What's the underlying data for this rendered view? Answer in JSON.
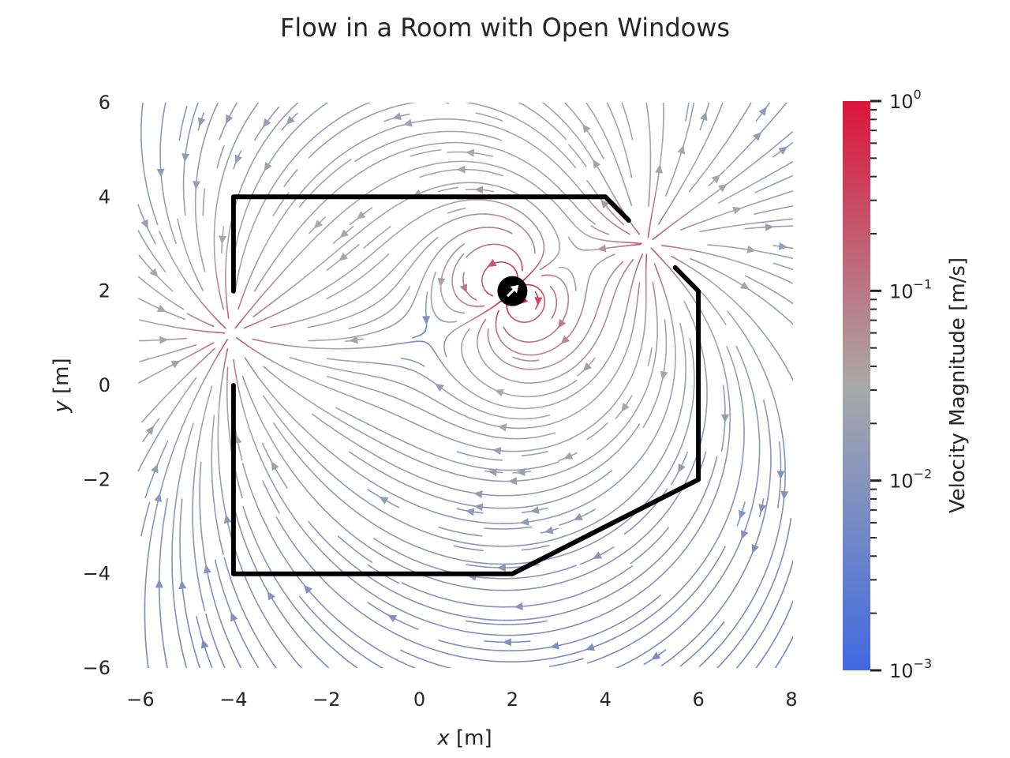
{
  "chart_data": {
    "type": "streamplot",
    "title": "Flow in a Room with Open Windows",
    "xlabel_var": "x",
    "xlabel_unit": " [m]",
    "ylabel_var": "y",
    "ylabel_unit": " [m]",
    "xlim": [
      -6,
      8
    ],
    "ylim": [
      -6,
      6
    ],
    "xticks": [
      -6,
      -4,
      -2,
      0,
      2,
      4,
      6,
      8
    ],
    "yticks": [
      -6,
      -4,
      -2,
      0,
      2,
      4,
      6
    ],
    "grid": false,
    "colorbar": {
      "label": "Velocity Magnitude [m/s]",
      "scale": "log",
      "range": [
        0.001,
        1
      ],
      "tick_base": "10",
      "tick_exponents": [
        "0",
        "−1",
        "−2",
        "−3"
      ],
      "tick_values": [
        1,
        0.1,
        0.01,
        0.001
      ],
      "colormap": [
        "#4169e1",
        "#a9a9a9",
        "#dc143c"
      ]
    },
    "walls": [
      {
        "name": "wall-upper",
        "points": [
          [
            -4,
            2
          ],
          [
            -4,
            4
          ],
          [
            4,
            4
          ],
          [
            4.5,
            3.5
          ]
        ]
      },
      {
        "name": "wall-lower",
        "points": [
          [
            -4,
            0
          ],
          [
            -4,
            -4
          ],
          [
            2,
            -4
          ],
          [
            6,
            -2
          ],
          [
            6,
            2
          ],
          [
            5.5,
            2.5
          ]
        ]
      }
    ],
    "fan": {
      "x": 2,
      "y": 2,
      "direction": [
        1,
        1
      ]
    },
    "flow_features": [
      {
        "kind": "dipole-source",
        "x": 2,
        "y": 2,
        "direction": [
          1,
          1
        ]
      },
      {
        "kind": "window-inlet",
        "x": 4.9,
        "y": 3.0
      },
      {
        "kind": "window-outlet",
        "x": -4.05,
        "y": 1.1
      }
    ],
    "velocity_range_mps": [
      0.001,
      1
    ]
  }
}
